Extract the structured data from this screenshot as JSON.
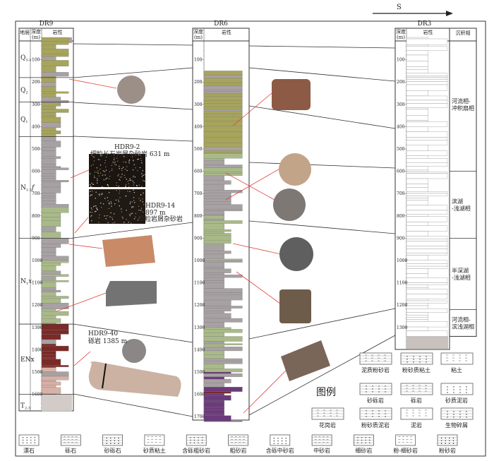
{
  "direction_label": "S",
  "legend_title": "图例",
  "wells": [
    {
      "id": "DR9",
      "title": "DR9",
      "headers": {
        "strat": "地层",
        "depth": "深度",
        "depth_unit": "(m)",
        "lith": "岩性"
      },
      "depth_ticks": [
        "100",
        "200",
        "300",
        "400",
        "500",
        "600",
        "700",
        "800",
        "900",
        "1000",
        "1100",
        "1200",
        "1300",
        "1400",
        "1500",
        "1600"
      ],
      "strata": [
        {
          "main": "Q",
          "sub": "3-4",
          "suffix": "",
          "top": 0,
          "bottom": 180
        },
        {
          "main": "Q",
          "sub": "2",
          "suffix": "",
          "top": 180,
          "bottom": 290
        },
        {
          "main": "Q",
          "sub": "1",
          "suffix": "",
          "top": 290,
          "bottom": 445
        },
        {
          "main": "N",
          "sub": "1-2",
          "suffix": "f",
          "top": 445,
          "bottom": 900
        },
        {
          "main": "N",
          "sub": "1",
          "suffix": "x",
          "top": 900,
          "bottom": 1285
        },
        {
          "main": "ENx",
          "sub": "",
          "suffix": "",
          "top": 1285,
          "bottom": 1600
        },
        {
          "main": "T",
          "sub": "2-3",
          "suffix": "",
          "top": 1600,
          "bottom": 1700
        }
      ]
    },
    {
      "id": "DR6",
      "title": "DR6",
      "headers": {
        "depth": "深度",
        "depth_unit": "(m)",
        "lith": "岩性"
      },
      "depth_ticks": [
        "100",
        "200",
        "300",
        "400",
        "500",
        "600",
        "700",
        "800",
        "900",
        "1000",
        "1100",
        "1200",
        "1300",
        "1400",
        "1500",
        "1600",
        "1700"
      ]
    },
    {
      "id": "DR3",
      "title": "DR3",
      "headers": {
        "depth": "深度",
        "depth_unit": "(m)",
        "lith": "岩性",
        "facies": "沉积相"
      },
      "depth_ticks": [
        "100",
        "200",
        "300",
        "400",
        "500",
        "600",
        "700",
        "800",
        "900",
        "1000",
        "1100",
        "1200",
        "1300"
      ],
      "facies": [
        {
          "line1": "河流相-",
          "line2": "冲积扇相",
          "top": 0,
          "bottom": 600
        },
        {
          "line1": "滨湖",
          "line2": "-浅湖相",
          "top": 600,
          "bottom": 900
        },
        {
          "line1": "半深湖",
          "line2": "-浅湖相",
          "top": 900,
          "bottom": 1220
        },
        {
          "line1": "河流相-",
          "line2": "滨浅湖相",
          "top": 1220,
          "bottom": 1340
        }
      ]
    }
  ],
  "samples": [
    {
      "id": "HDR9-2",
      "desc": "细粒长石岩屑杂砂岩  631 m"
    },
    {
      "id": "HDR9-14",
      "depth": "897 m",
      "desc": "细粒岩屑杂砂岩"
    },
    {
      "id": "HDR9-40",
      "desc": "砾岩  1385 m"
    }
  ],
  "legend": {
    "right": [
      "泥质粉砂岩",
      "粉砂质粘土",
      "粘土",
      "砂砾岩",
      "砾岩",
      "砂质泥岩",
      "花岗岩",
      "粉砂质泥岩",
      "泥岩",
      "生物碎屑"
    ],
    "bottom": [
      "漂石",
      "砾石",
      "砂砾石",
      "砂质粘土",
      "含砾粗砂岩",
      "粗砂岩",
      "含砾中砂岩",
      "中砂岩",
      "细砂岩",
      "粉-细砂岩",
      "粉砂岩"
    ]
  },
  "colors": {
    "olive": "#a7a45c",
    "gray": "#a8a1a4",
    "green": "#a9ba88",
    "red": "#7b2a27",
    "pink": "#d8b1a6",
    "purple": "#6b3a7a",
    "orange": "#e0a030",
    "corr_line": "#333333",
    "sample_line": "#e0403a"
  }
}
